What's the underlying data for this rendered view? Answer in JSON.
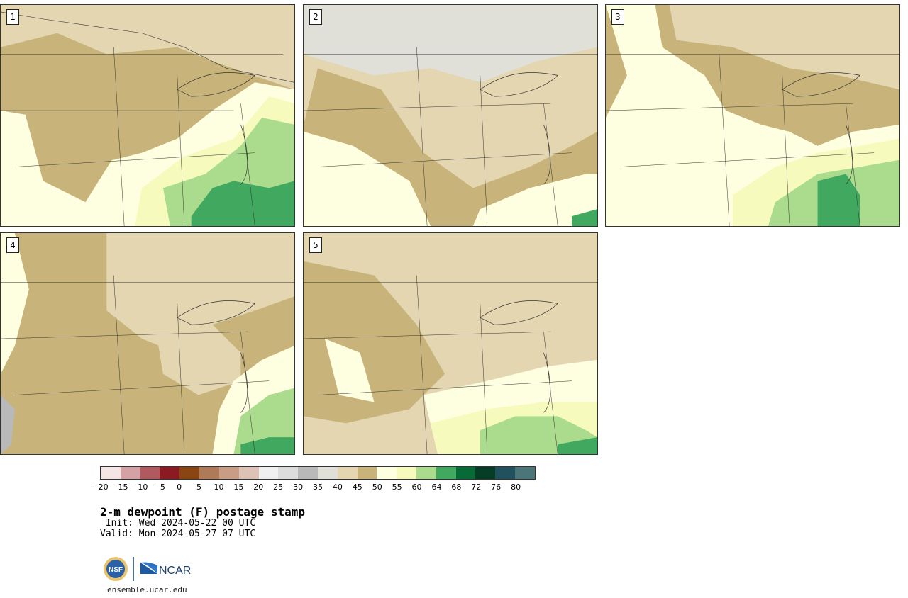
{
  "title": "2-m dewpoint (F) postage stamp",
  "init_line": " Init: Wed 2024-05-22 00 UTC",
  "valid_line": "Valid: Mon 2024-05-27 07 UTC",
  "site": "ensemble.ucar.edu",
  "logos": {
    "nsf_text": "NSF",
    "ncar_text": "NCAR"
  },
  "panels": [
    {
      "number": "1",
      "dominant": "mixed",
      "palette": [
        "#c8b47a",
        "#e3d6b1",
        "#fefee0",
        "#f6fbbd",
        "#abdc8e",
        "#41a85f"
      ]
    },
    {
      "number": "2",
      "dominant": "dry",
      "palette": [
        "#c8b47a",
        "#e3d6b1",
        "#e0e0d8",
        "#fefee0"
      ]
    },
    {
      "number": "3",
      "dominant": "moist",
      "palette": [
        "#c8b47a",
        "#e3d6b1",
        "#fefee0",
        "#f6fbbd",
        "#abdc8e",
        "#41a85f"
      ]
    },
    {
      "number": "4",
      "dominant": "dry",
      "palette": [
        "#c8b47a",
        "#e3d6b1",
        "#fefee0",
        "#abdc8e",
        "#41a85f"
      ]
    },
    {
      "number": "5",
      "dominant": "dry",
      "palette": [
        "#c8b47a",
        "#e3d6b1",
        "#fefee0",
        "#f6fbbd",
        "#abdc8e",
        "#41a85f"
      ]
    }
  ],
  "colorbar": {
    "colors": [
      "#f5e6e6",
      "#d4a2a4",
      "#b0595f",
      "#8c1a23",
      "#8b4513",
      "#ae7a58",
      "#c99c86",
      "#ddc3b5",
      "#f0f0f0",
      "#dddddd",
      "#b9b9b9",
      "#e0e0d8",
      "#e3d6b1",
      "#c8b47a",
      "#fefee0",
      "#f6fbbd",
      "#abdc8e",
      "#41a85f",
      "#066b37",
      "#063d27",
      "#21515d",
      "#4b7578"
    ],
    "tick_labels": [
      "−20",
      "−15",
      "−10",
      "−5",
      "0",
      "5",
      "10",
      "15",
      "20",
      "25",
      "30",
      "35",
      "40",
      "45",
      "50",
      "55",
      "60",
      "64",
      "68",
      "72",
      "76",
      "80"
    ]
  }
}
